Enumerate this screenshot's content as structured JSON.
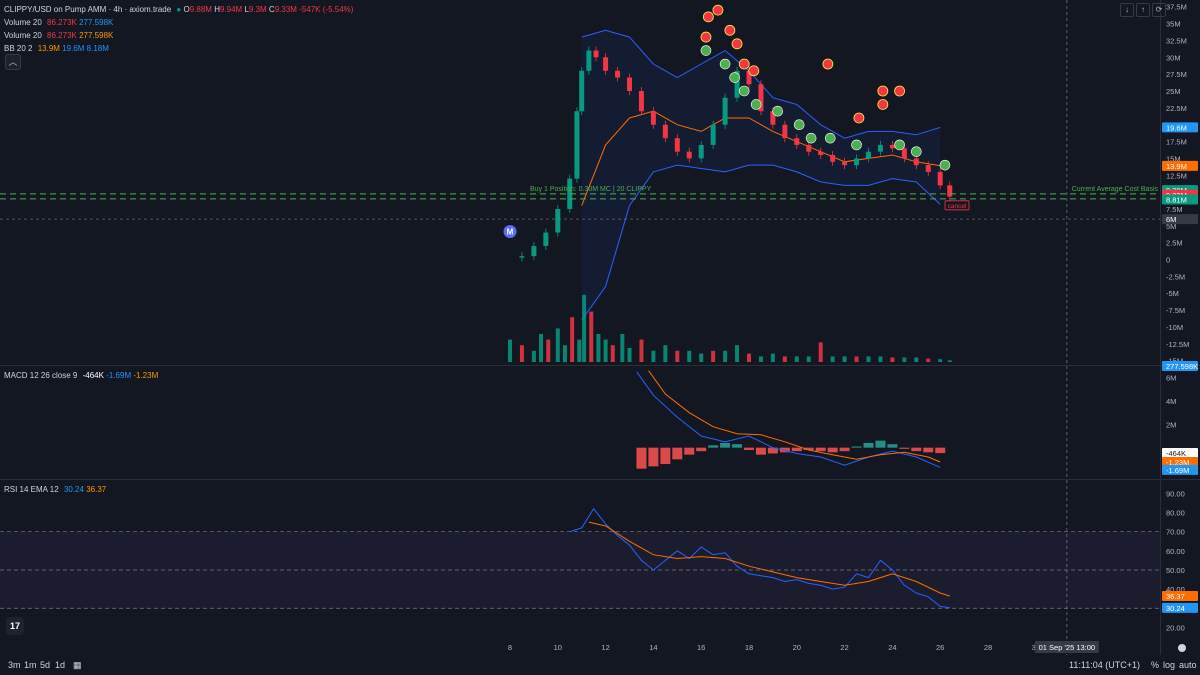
{
  "header": {
    "title": "CLIPPY/USD on Pump AMM · 4h · axiom.trade",
    "ohlc": {
      "o_label": "O",
      "o": "9.88M",
      "h_label": "H",
      "h": "9.94M",
      "l_label": "L",
      "l": "9.3M",
      "c_label": "C",
      "c": "9.33M",
      "change": "-547K (-5.54%)"
    },
    "vol1": {
      "name": "Volume 20",
      "a": "86.273K",
      "b": "277.598K"
    },
    "vol2": {
      "name": "Volume 20",
      "a": "86.273K",
      "b": "277.598K"
    },
    "bb": {
      "name": "BB 20 2",
      "a": "13.9M",
      "b": "19.6M",
      "c": "8.18M"
    },
    "macd": {
      "name": "MACD 12 26 close 9",
      "a": "-464K",
      "b": "-1.69M",
      "c": "-1.23M"
    },
    "rsi": {
      "name": "RSI 14 EMA 12",
      "a": "30.24",
      "b": "36.37"
    }
  },
  "annotations": {
    "buy_line": "Buy 1 Position: 0.30M MC | 20 CLIPPY",
    "avg_cost": "Current Average Cost Basis",
    "cancel": "cancel",
    "marker_m": "M"
  },
  "price_axis": {
    "ticks": [
      "37.5M",
      "35M",
      "32.5M",
      "30M",
      "27.5M",
      "25M",
      "22.5M",
      "20M",
      "17.5M",
      "15M",
      "12.5M",
      "10M",
      "7.5M",
      "5M",
      "2.5M",
      "0",
      "-2.5M",
      "-5M",
      "-7.5M",
      "-10M",
      "-12.5M",
      "-15M"
    ],
    "ticks_values": [
      37.5,
      35,
      32.5,
      30,
      27.5,
      25,
      22.5,
      20,
      17.5,
      15,
      12.5,
      10,
      7.5,
      5,
      2.5,
      0,
      -2.5,
      -5,
      -7.5,
      -10,
      -12.5,
      -15
    ],
    "labels": [
      {
        "text": "19.6M",
        "color": "#2196f3",
        "value": 19.6
      },
      {
        "text": "13.9M",
        "color": "#ff6d00",
        "value": 13.9
      },
      {
        "text": "9.39M",
        "color": "#089981",
        "value": 10.3
      },
      {
        "text": "9.33M",
        "color": "#f23645",
        "value": 9.6
      },
      {
        "text": "8.81M",
        "color": "#089981",
        "value": 8.9
      },
      {
        "text": "6M",
        "color": "#363a45",
        "value": 6.0
      },
      {
        "text": "277.598K",
        "color": "#2196f3",
        "value": -15.8
      }
    ]
  },
  "macd_axis": {
    "ticks": [
      "6M",
      "4M",
      "2M"
    ],
    "ticks_values": [
      6,
      4,
      2
    ],
    "labels": [
      {
        "text": "-464K",
        "color": "#ffffff",
        "fg": "#131722",
        "value": -0.46
      },
      {
        "text": "-1.23M",
        "color": "#ff6d00",
        "fg": "#ffffff",
        "value": -1.23
      },
      {
        "text": "-1.69M",
        "color": "#2196f3",
        "fg": "#ffffff",
        "value": -1.9
      }
    ]
  },
  "rsi_axis": {
    "ticks": [
      "90.00",
      "80.00",
      "70.00",
      "60.00",
      "50.00",
      "40.00",
      "30.00",
      "20.00"
    ],
    "ticks_values": [
      90,
      80,
      70,
      60,
      50,
      40,
      30,
      20
    ],
    "labels": [
      {
        "text": "36.37",
        "color": "#ff6d00",
        "value": 36.4
      },
      {
        "text": "30.24",
        "color": "#2196f3",
        "value": 30.2
      }
    ]
  },
  "time_axis": {
    "ticks": [
      "8",
      "10",
      "12",
      "14",
      "16",
      "18",
      "20",
      "22",
      "24",
      "26",
      "28",
      "30",
      "3"
    ],
    "cursor_label": "01 Sep '25 13:00"
  },
  "footer": {
    "timeframes": [
      "3m",
      "1m",
      "5d",
      "1d"
    ],
    "clock": "11:11:04 (UTC+1)",
    "opts": [
      "%",
      "log",
      "auto"
    ]
  },
  "chart_data": {
    "type": "line",
    "price_range": [
      -15.5,
      38.5
    ],
    "macd_range": [
      -2.6,
      7.0
    ],
    "rsi_range": [
      15,
      97
    ],
    "day_start": 7.5,
    "day_end": 32.5,
    "price_path": [
      [
        8.0,
        0.3
      ],
      [
        8.5,
        0.5
      ],
      [
        9.0,
        2.0
      ],
      [
        9.5,
        4.0
      ],
      [
        10.0,
        7.5
      ],
      [
        10.5,
        12.0
      ],
      [
        10.8,
        22.0
      ],
      [
        11.0,
        28.0
      ],
      [
        11.3,
        31.0
      ],
      [
        11.6,
        30.0
      ],
      [
        12.0,
        28.0
      ],
      [
        12.5,
        27.0
      ],
      [
        13.0,
        25.0
      ],
      [
        13.5,
        22.0
      ],
      [
        14.0,
        20.0
      ],
      [
        14.5,
        18.0
      ],
      [
        15.0,
        16.0
      ],
      [
        15.5,
        15.0
      ],
      [
        16.0,
        17.0
      ],
      [
        16.5,
        20.0
      ],
      [
        17.0,
        24.0
      ],
      [
        17.5,
        28.0
      ],
      [
        18.0,
        26.0
      ],
      [
        18.5,
        22.0
      ],
      [
        19.0,
        20.0
      ],
      [
        19.5,
        18.0
      ],
      [
        20.0,
        17.0
      ],
      [
        20.5,
        16.0
      ],
      [
        21.0,
        15.5
      ],
      [
        21.5,
        14.5
      ],
      [
        22.0,
        14.0
      ],
      [
        22.5,
        15.0
      ],
      [
        23.0,
        16.0
      ],
      [
        23.5,
        17.0
      ],
      [
        24.0,
        16.5
      ],
      [
        24.5,
        15.0
      ],
      [
        25.0,
        14.0
      ],
      [
        25.5,
        13.0
      ],
      [
        26.0,
        11.0
      ],
      [
        26.4,
        9.33
      ]
    ],
    "bb_upper": [
      [
        11.0,
        33.0
      ],
      [
        12.0,
        34.0
      ],
      [
        13.0,
        33.0
      ],
      [
        14.0,
        29.0
      ],
      [
        15.0,
        27.0
      ],
      [
        16.0,
        29.0
      ],
      [
        17.0,
        31.0
      ],
      [
        18.0,
        28.0
      ],
      [
        19.0,
        24.0
      ],
      [
        20.0,
        23.0
      ],
      [
        21.0,
        20.0
      ],
      [
        22.0,
        18.0
      ],
      [
        23.0,
        19.0
      ],
      [
        24.0,
        19.0
      ],
      [
        25.0,
        18.5
      ],
      [
        26.0,
        19.6
      ]
    ],
    "bb_basis": [
      [
        11.0,
        8.0
      ],
      [
        12.0,
        17.0
      ],
      [
        13.0,
        21.0
      ],
      [
        14.0,
        22.0
      ],
      [
        15.0,
        20.0
      ],
      [
        16.0,
        19.0
      ],
      [
        17.0,
        21.0
      ],
      [
        18.0,
        21.0
      ],
      [
        19.0,
        19.0
      ],
      [
        20.0,
        17.5
      ],
      [
        21.0,
        16.0
      ],
      [
        22.0,
        14.5
      ],
      [
        23.0,
        15.0
      ],
      [
        24.0,
        15.5
      ],
      [
        25.0,
        14.5
      ],
      [
        26.0,
        13.9
      ]
    ],
    "bb_lower": [
      [
        11.0,
        -9.0
      ],
      [
        12.0,
        -4.0
      ],
      [
        13.0,
        8.0
      ],
      [
        14.0,
        13.0
      ],
      [
        15.0,
        14.0
      ],
      [
        16.0,
        13.5
      ],
      [
        17.0,
        13.0
      ],
      [
        18.0,
        14.0
      ],
      [
        19.0,
        14.0
      ],
      [
        20.0,
        13.0
      ],
      [
        21.0,
        11.5
      ],
      [
        22.0,
        11.0
      ],
      [
        23.0,
        11.0
      ],
      [
        24.0,
        12.0
      ],
      [
        25.0,
        11.5
      ],
      [
        26.0,
        8.18
      ]
    ],
    "volume_bars": [
      [
        8.0,
        4.0
      ],
      [
        8.5,
        3.0
      ],
      [
        9.0,
        2.0
      ],
      [
        9.3,
        5.0
      ],
      [
        9.6,
        4.0
      ],
      [
        10.0,
        6.0
      ],
      [
        10.3,
        3.0
      ],
      [
        10.6,
        8.0
      ],
      [
        10.9,
        4.0
      ],
      [
        11.1,
        12.0
      ],
      [
        11.4,
        9.0
      ],
      [
        11.7,
        5.0
      ],
      [
        12.0,
        4.0
      ],
      [
        12.3,
        3.0
      ],
      [
        12.7,
        5.0
      ],
      [
        13.0,
        2.5
      ],
      [
        13.5,
        4.0
      ],
      [
        14.0,
        2.0
      ],
      [
        14.5,
        3.0
      ],
      [
        15.0,
        2.0
      ],
      [
        15.5,
        2.0
      ],
      [
        16.0,
        1.5
      ],
      [
        16.5,
        2.0
      ],
      [
        17.0,
        2.0
      ],
      [
        17.5,
        3.0
      ],
      [
        18.0,
        1.5
      ],
      [
        18.5,
        1.0
      ],
      [
        19.0,
        1.5
      ],
      [
        19.5,
        1.0
      ],
      [
        20.0,
        1.0
      ],
      [
        20.5,
        1.0
      ],
      [
        21.0,
        3.5
      ],
      [
        21.5,
        1.0
      ],
      [
        22.0,
        1.0
      ],
      [
        22.5,
        1.0
      ],
      [
        23.0,
        1.0
      ],
      [
        23.5,
        1.0
      ],
      [
        24.0,
        0.8
      ],
      [
        24.5,
        0.8
      ],
      [
        25.0,
        0.8
      ],
      [
        25.5,
        0.6
      ],
      [
        26.0,
        0.5
      ],
      [
        26.4,
        0.3
      ]
    ],
    "macd_line": [
      [
        13.3,
        6.5
      ],
      [
        14.0,
        4.5
      ],
      [
        15.0,
        2.6
      ],
      [
        16.0,
        1.0
      ],
      [
        17.0,
        0.5
      ],
      [
        18.0,
        1.0
      ],
      [
        19.0,
        0.0
      ],
      [
        20.0,
        -0.5
      ],
      [
        21.0,
        -0.8
      ],
      [
        22.0,
        -1.5
      ],
      [
        23.0,
        -0.8
      ],
      [
        24.0,
        -0.3
      ],
      [
        25.0,
        -0.8
      ],
      [
        26.0,
        -1.69
      ]
    ],
    "macd_signal": [
      [
        13.8,
        6.6
      ],
      [
        14.5,
        4.6
      ],
      [
        15.5,
        3.0
      ],
      [
        16.5,
        1.8
      ],
      [
        17.5,
        1.2
      ],
      [
        18.5,
        1.1
      ],
      [
        19.5,
        0.5
      ],
      [
        20.5,
        -0.2
      ],
      [
        21.5,
        -0.6
      ],
      [
        22.5,
        -1.0
      ],
      [
        23.5,
        -0.6
      ],
      [
        24.5,
        -0.4
      ],
      [
        25.5,
        -0.8
      ],
      [
        26.0,
        -1.23
      ]
    ],
    "macd_hist": [
      [
        13.5,
        -1.8
      ],
      [
        14.0,
        -1.6
      ],
      [
        14.5,
        -1.4
      ],
      [
        15.0,
        -1.0
      ],
      [
        15.5,
        -0.6
      ],
      [
        16.0,
        -0.3
      ],
      [
        16.5,
        0.2
      ],
      [
        17.0,
        0.4
      ],
      [
        17.5,
        0.3
      ],
      [
        18.0,
        -0.2
      ],
      [
        18.5,
        -0.6
      ],
      [
        19.0,
        -0.5
      ],
      [
        19.5,
        -0.4
      ],
      [
        20.0,
        -0.3
      ],
      [
        20.5,
        -0.2
      ],
      [
        21.0,
        -0.3
      ],
      [
        21.5,
        -0.4
      ],
      [
        22.0,
        -0.3
      ],
      [
        22.5,
        0.1
      ],
      [
        23.0,
        0.4
      ],
      [
        23.5,
        0.6
      ],
      [
        24.0,
        0.3
      ],
      [
        24.5,
        -0.1
      ],
      [
        25.0,
        -0.3
      ],
      [
        25.5,
        -0.4
      ],
      [
        26.0,
        -0.464
      ]
    ],
    "rsi_line": [
      [
        10.5,
        70
      ],
      [
        11.0,
        72
      ],
      [
        11.5,
        82
      ],
      [
        12.0,
        74
      ],
      [
        12.5,
        68
      ],
      [
        13.0,
        63
      ],
      [
        13.5,
        55
      ],
      [
        14.0,
        50
      ],
      [
        14.5,
        55
      ],
      [
        15.0,
        60
      ],
      [
        15.5,
        56
      ],
      [
        16.0,
        62
      ],
      [
        16.5,
        58
      ],
      [
        17.0,
        59
      ],
      [
        17.5,
        52
      ],
      [
        18.0,
        48
      ],
      [
        18.5,
        47
      ],
      [
        19.0,
        46
      ],
      [
        19.5,
        44
      ],
      [
        20.0,
        45
      ],
      [
        20.5,
        43
      ],
      [
        21.0,
        42
      ],
      [
        21.5,
        40
      ],
      [
        22.0,
        41
      ],
      [
        22.5,
        48
      ],
      [
        23.0,
        46
      ],
      [
        23.5,
        55
      ],
      [
        24.0,
        50
      ],
      [
        24.5,
        42
      ],
      [
        25.0,
        38
      ],
      [
        25.5,
        36
      ],
      [
        26.0,
        31
      ],
      [
        26.4,
        30.24
      ]
    ],
    "rsi_ema": [
      [
        11.3,
        75
      ],
      [
        12.0,
        73
      ],
      [
        13.0,
        65
      ],
      [
        14.0,
        58
      ],
      [
        15.0,
        56
      ],
      [
        16.0,
        57
      ],
      [
        17.0,
        56
      ],
      [
        18.0,
        52
      ],
      [
        19.0,
        49
      ],
      [
        20.0,
        46
      ],
      [
        21.0,
        44
      ],
      [
        22.0,
        42
      ],
      [
        23.0,
        44
      ],
      [
        24.0,
        48
      ],
      [
        25.0,
        44
      ],
      [
        26.0,
        38
      ],
      [
        26.4,
        36.37
      ]
    ],
    "rsi_bands": [
      70,
      50,
      30
    ],
    "buy_level": 9.3,
    "avg_cost_level": 9.3,
    "m_level": 6.0,
    "signals_red": [
      [
        16.2,
        33
      ],
      [
        16.3,
        36
      ],
      [
        16.7,
        37
      ],
      [
        17.2,
        34
      ],
      [
        17.5,
        32
      ],
      [
        17.8,
        29
      ],
      [
        18.2,
        28
      ],
      [
        21.3,
        29
      ],
      [
        23.6,
        25
      ],
      [
        23.6,
        23
      ],
      [
        24.3,
        25
      ],
      [
        22.6,
        21
      ]
    ],
    "signals_green": [
      [
        16.2,
        31
      ],
      [
        17.0,
        29
      ],
      [
        17.4,
        27
      ],
      [
        17.8,
        25
      ],
      [
        18.3,
        23
      ],
      [
        19.2,
        22
      ],
      [
        20.1,
        20
      ],
      [
        20.6,
        18
      ],
      [
        21.4,
        18
      ],
      [
        22.5,
        17
      ],
      [
        24.3,
        17
      ],
      [
        25.0,
        16
      ],
      [
        26.2,
        14
      ]
    ],
    "cursor_day": 31.3,
    "hline_level": 6.0
  },
  "colors": {
    "bg": "#131722",
    "up": "#089981",
    "down": "#f23645",
    "bb": "#2962ff",
    "basis": "#ff6d00",
    "grid": "#1e222d",
    "accent_green": "#4caf50",
    "rsi_band": "#7e57c2"
  }
}
